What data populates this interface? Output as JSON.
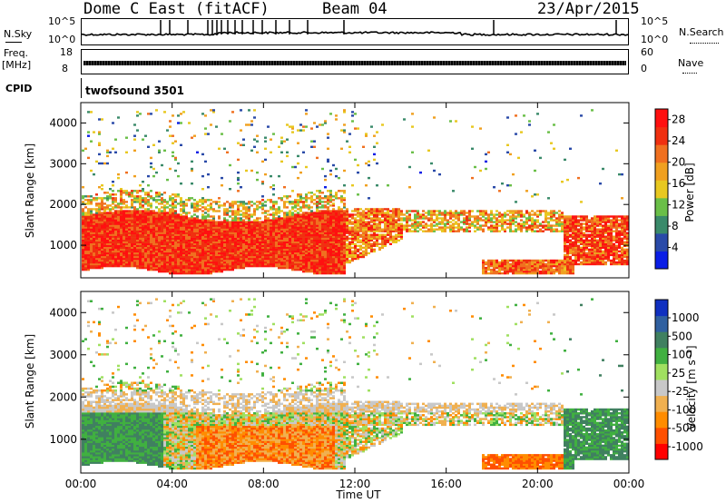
{
  "header": {
    "station": "Dome C East (fitACF)",
    "beam": "Beam 04",
    "date": "23/Apr/2015"
  },
  "left_labels": {
    "nsky": "N.Sky",
    "freq": "Freq.",
    "freq_unit": "[MHz]",
    "cpid": "CPID"
  },
  "right_labels": {
    "nsearch": "N.Search",
    "nave": "Nave"
  },
  "noise_axis": {
    "left_top": "10^5",
    "left_bottom": "10^0",
    "right_top": "10^5",
    "right_bottom": "10^0"
  },
  "freq_axis": {
    "left_top": "18",
    "left_bottom": "8",
    "right_top": "60",
    "right_bottom": "0"
  },
  "cpid_text": "twofsound 3501",
  "colors": {
    "power_scale": [
      "#0a1ee6",
      "#2a4aa8",
      "#3a8a6a",
      "#6abf48",
      "#e8c820",
      "#f0a020",
      "#f07020",
      "#f03010",
      "#ff1010"
    ],
    "velocity_scale": [
      "#ff0000",
      "#ff5000",
      "#ff8c00",
      "#f0b050",
      "#c8c8c8",
      "#a0e060",
      "#40b040",
      "#408060",
      "#3060a0",
      "#1030c0"
    ]
  },
  "chart_data": [
    {
      "type": "heatmap",
      "title": "",
      "quantity": "Power",
      "xlabel": "",
      "ylabel": "Slant Range [km]",
      "x_ticks": [
        "00:00",
        "04:00",
        "08:00",
        "12:00",
        "16:00",
        "20:00",
        "00:00"
      ],
      "y_ticks": [
        "1000",
        "2000",
        "3000",
        "4000"
      ],
      "ylim": [
        200,
        4500
      ],
      "colorbar_label": "Power [dB]",
      "colorbar_ticks": [
        "4",
        "8",
        "12",
        "16",
        "20",
        "24",
        "28"
      ],
      "colorbar_range": [
        0,
        30
      ]
    },
    {
      "type": "heatmap",
      "title": "",
      "quantity": "Velocity",
      "xlabel": "Time UT",
      "ylabel": "Slant Range [km]",
      "x_ticks": [
        "00:00",
        "04:00",
        "08:00",
        "12:00",
        "16:00",
        "20:00",
        "00:00"
      ],
      "y_ticks": [
        "1000",
        "2000",
        "3000",
        "4000"
      ],
      "ylim": [
        200,
        4500
      ],
      "colorbar_label": "Velocity [m s⁻¹]",
      "colorbar_ticks": [
        "1000",
        "500",
        "100",
        "25",
        "-25",
        "-100",
        "-500",
        "-1000"
      ]
    }
  ]
}
